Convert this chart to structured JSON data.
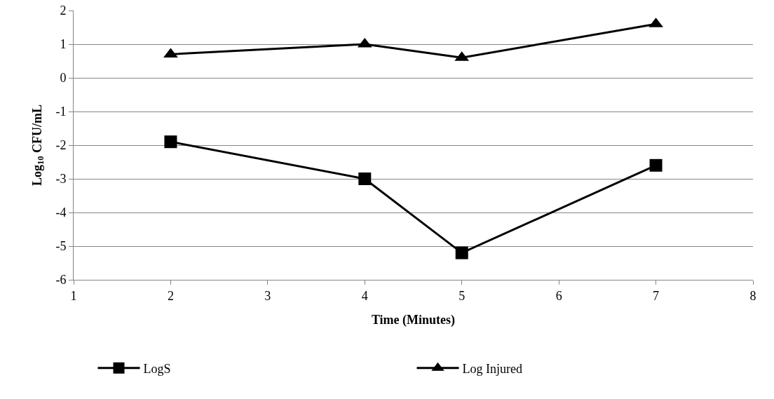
{
  "chart_data": {
    "type": "line",
    "xlabel": "Time (Minutes)",
    "ylabel": "Log$_{10}$ CFU/mL",
    "x": [
      2,
      4,
      5,
      7
    ],
    "series": [
      {
        "name": "LogS",
        "color": "#000000",
        "marker": "square",
        "values": [
          -1.9,
          -3.0,
          -5.2,
          -2.6
        ]
      },
      {
        "name": "Log Injured",
        "color": "#000000",
        "marker": "triangle",
        "values": [
          0.7,
          1.0,
          0.6,
          1.6
        ]
      }
    ],
    "xlim": [
      1,
      8
    ],
    "xticks": [
      1,
      2,
      3,
      4,
      5,
      6,
      7,
      8
    ],
    "ylim": [
      -6,
      2
    ],
    "yticks": [
      -6,
      -5,
      -4,
      -3,
      -2,
      -1,
      0,
      1,
      2
    ],
    "grid": "y",
    "legend": "bottom",
    "line_style": "solid"
  }
}
